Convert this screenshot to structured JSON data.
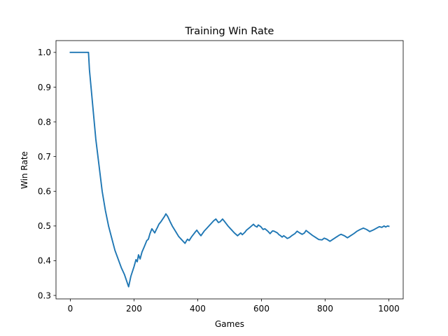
{
  "chart_data": {
    "type": "line",
    "title": "Training Win Rate",
    "xlabel": "Games",
    "ylabel": "Win Rate",
    "xlim": [
      -45,
      1045
    ],
    "ylim": [
      0.29,
      1.034
    ],
    "x_ticks": [
      0,
      200,
      400,
      600,
      800,
      1000
    ],
    "x_tick_labels": [
      "0",
      "200",
      "400",
      "600",
      "800",
      "1000"
    ],
    "y_ticks": [
      0.3,
      0.4,
      0.5,
      0.6,
      0.7,
      0.8,
      0.9,
      1.0
    ],
    "y_tick_labels": [
      "0.3",
      "0.4",
      "0.5",
      "0.6",
      "0.7",
      "0.8",
      "0.9",
      "1.0"
    ],
    "grid": false,
    "series": [
      {
        "color": "#1f77b4",
        "x": [
          0,
          20,
          40,
          57,
          60,
          70,
          80,
          90,
          100,
          110,
          120,
          130,
          140,
          150,
          160,
          170,
          183,
          190,
          200,
          206,
          210,
          214,
          219,
          225,
          232,
          240,
          245,
          250,
          256,
          265,
          270,
          273,
          278,
          285,
          290,
          296,
          300,
          306,
          313,
          320,
          330,
          340,
          350,
          360,
          365,
          368,
          373,
          380,
          390,
          397,
          403,
          410,
          420,
          430,
          440,
          450,
          457,
          465,
          470,
          478,
          485,
          495,
          505,
          515,
          525,
          535,
          540,
          548,
          553,
          565,
          575,
          580,
          586,
          590,
          598,
          605,
          611,
          620,
          627,
          635,
          640,
          650,
          655,
          660,
          665,
          670,
          676,
          681,
          688,
          695,
          705,
          712,
          720,
          728,
          735,
          740,
          750,
          760,
          770,
          780,
          790,
          797,
          805,
          815,
          825,
          835,
          845,
          850,
          860,
          870,
          880,
          890,
          900,
          910,
          920,
          930,
          940,
          950,
          960,
          970,
          978,
          985,
          990,
          996,
          1000
        ],
        "y": [
          1.0,
          1.0,
          1.0,
          1.0,
          0.95,
          0.85,
          0.75,
          0.675,
          0.6,
          0.545,
          0.5,
          0.465,
          0.43,
          0.405,
          0.38,
          0.36,
          0.325,
          0.355,
          0.383,
          0.403,
          0.397,
          0.417,
          0.405,
          0.425,
          0.44,
          0.458,
          0.462,
          0.478,
          0.492,
          0.48,
          0.49,
          0.495,
          0.505,
          0.513,
          0.52,
          0.528,
          0.535,
          0.527,
          0.513,
          0.5,
          0.485,
          0.47,
          0.46,
          0.45,
          0.458,
          0.462,
          0.458,
          0.468,
          0.48,
          0.488,
          0.48,
          0.472,
          0.485,
          0.495,
          0.505,
          0.515,
          0.52,
          0.51,
          0.512,
          0.52,
          0.512,
          0.5,
          0.49,
          0.48,
          0.472,
          0.48,
          0.475,
          0.482,
          0.488,
          0.497,
          0.505,
          0.5,
          0.497,
          0.503,
          0.498,
          0.49,
          0.492,
          0.485,
          0.478,
          0.486,
          0.485,
          0.48,
          0.475,
          0.472,
          0.468,
          0.472,
          0.468,
          0.464,
          0.467,
          0.472,
          0.478,
          0.485,
          0.48,
          0.476,
          0.48,
          0.487,
          0.48,
          0.473,
          0.467,
          0.461,
          0.46,
          0.465,
          0.462,
          0.456,
          0.462,
          0.468,
          0.474,
          0.476,
          0.472,
          0.466,
          0.472,
          0.478,
          0.485,
          0.49,
          0.494,
          0.49,
          0.484,
          0.488,
          0.493,
          0.498,
          0.496,
          0.5,
          0.497,
          0.5,
          0.499
        ]
      }
    ]
  }
}
